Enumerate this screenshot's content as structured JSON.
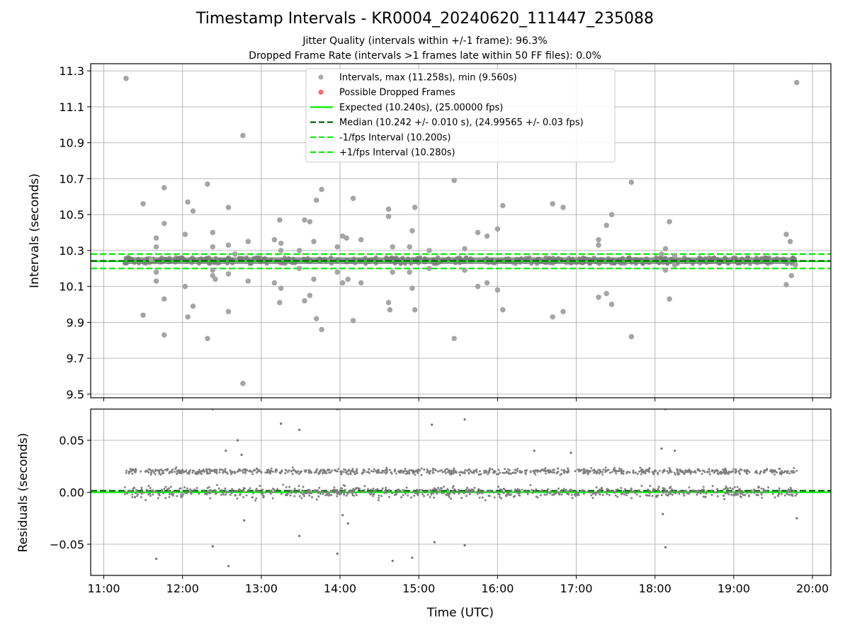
{
  "title": "Timestamp Intervals - KR0004_20240620_111447_235088",
  "subtitle_1": "Jitter Quality (intervals within +/-1 frame): 96.3%",
  "subtitle_2": "Dropped Frame Rate (intervals >1 frames late within 50 FF files): 0.0%",
  "colors": {
    "points": "#808080",
    "dropped": "#ff0000",
    "expected": "#00ee00",
    "median": "#006400",
    "fps_band": "#00ee00",
    "grid": "#b0b0b0"
  },
  "chart_data": [
    {
      "type": "scatter",
      "panel": "intervals",
      "ylabel": "Intervals (seconds)",
      "ylim": [
        9.48,
        11.34
      ],
      "yticks": [
        "9.5",
        "9.7",
        "9.9",
        "10.1",
        "10.3",
        "10.5",
        "10.7",
        "10.9",
        "11.1",
        "11.3"
      ],
      "xlim": [
        "10:50",
        "20:14"
      ],
      "grid": true,
      "legend_position": "upper center",
      "legend": [
        {
          "label": "Intervals, max (11.258s), min (9.560s)",
          "kind": "dot",
          "color": "#a0a0a0"
        },
        {
          "label": "Possible Dropped Frames",
          "kind": "dot",
          "color": "#ff5050"
        },
        {
          "label": "Expected (10.240s), (25.00000 fps)",
          "kind": "solid",
          "color": "#00ee00"
        },
        {
          "label": "Median (10.242 +/- 0.010 s), (24.99565 +/- 0.03 fps)",
          "kind": "dashed",
          "color": "#006400"
        },
        {
          "label": "-1/fps Interval (10.200s)",
          "kind": "dashed",
          "color": "#00ee00"
        },
        {
          "label": "+1/fps Interval (10.280s)",
          "kind": "dashed",
          "color": "#00ee00"
        }
      ],
      "reference_lines": {
        "expected": 10.24,
        "median": 10.242,
        "minus_1fps": 10.2,
        "plus_1fps": 10.28
      },
      "band_range": {
        "x_start": "11:16",
        "x_end": "19:48",
        "y_low": 10.225,
        "y_high": 10.262
      },
      "outliers": [
        [
          "11:17",
          11.258
        ],
        [
          "11:30",
          10.56
        ],
        [
          "11:30",
          9.94
        ],
        [
          "11:36",
          10.25
        ],
        [
          "11:40",
          10.37
        ],
        [
          "11:40",
          10.32
        ],
        [
          "11:40",
          10.18
        ],
        [
          "11:40",
          10.13
        ],
        [
          "11:46",
          10.65
        ],
        [
          "11:46",
          10.45
        ],
        [
          "11:46",
          10.03
        ],
        [
          "11:46",
          9.83
        ],
        [
          "12:02",
          10.39
        ],
        [
          "12:02",
          10.1
        ],
        [
          "12:04",
          10.57
        ],
        [
          "12:04",
          9.93
        ],
        [
          "12:08",
          10.52
        ],
        [
          "12:08",
          9.99
        ],
        [
          "12:19",
          10.67
        ],
        [
          "12:19",
          9.81
        ],
        [
          "12:23",
          10.4
        ],
        [
          "12:23",
          10.32
        ],
        [
          "12:23",
          10.19
        ],
        [
          "12:23",
          10.16
        ],
        [
          "12:25",
          10.14
        ],
        [
          "12:35",
          10.54
        ],
        [
          "12:35",
          10.33
        ],
        [
          "12:35",
          10.17
        ],
        [
          "12:35",
          9.96
        ],
        [
          "12:40",
          10.28
        ],
        [
          "12:46",
          10.94
        ],
        [
          "12:46",
          9.56
        ],
        [
          "12:50",
          10.35
        ],
        [
          "12:50",
          10.13
        ],
        [
          "13:10",
          10.36
        ],
        [
          "13:10",
          10.12
        ],
        [
          "13:14",
          10.47
        ],
        [
          "13:15",
          10.34
        ],
        [
          "13:15",
          10.3
        ],
        [
          "13:15",
          10.09
        ],
        [
          "13:14",
          10.01
        ],
        [
          "13:29",
          10.3
        ],
        [
          "13:29",
          10.2
        ],
        [
          "13:33",
          10.47
        ],
        [
          "13:33",
          10.02
        ],
        [
          "13:37",
          10.46
        ],
        [
          "13:37",
          10.05
        ],
        [
          "13:40",
          10.35
        ],
        [
          "13:40",
          10.14
        ],
        [
          "13:42",
          10.58
        ],
        [
          "13:42",
          9.92
        ],
        [
          "13:46",
          10.64
        ],
        [
          "13:46",
          9.86
        ],
        [
          "13:58",
          10.32
        ],
        [
          "13:58",
          10.18
        ],
        [
          "14:02",
          10.38
        ],
        [
          "14:02",
          10.12
        ],
        [
          "14:05",
          10.37
        ],
        [
          "14:06",
          10.14
        ],
        [
          "14:10",
          10.59
        ],
        [
          "14:10",
          9.91
        ],
        [
          "14:16",
          10.36
        ],
        [
          "14:16",
          10.12
        ],
        [
          "14:37",
          10.53
        ],
        [
          "14:37",
          10.49
        ],
        [
          "14:37",
          10.01
        ],
        [
          "14:38",
          9.97
        ],
        [
          "14:40",
          10.32
        ],
        [
          "14:40",
          10.18
        ],
        [
          "14:53",
          10.32
        ],
        [
          "14:53",
          10.18
        ],
        [
          "14:55",
          10.41
        ],
        [
          "14:55",
          10.09
        ],
        [
          "14:57",
          10.54
        ],
        [
          "14:57",
          9.97
        ],
        [
          "15:08",
          10.3
        ],
        [
          "15:08",
          10.2
        ],
        [
          "15:27",
          10.69
        ],
        [
          "15:27",
          9.81
        ],
        [
          "15:35",
          10.31
        ],
        [
          "15:35",
          10.19
        ],
        [
          "15:45",
          10.4
        ],
        [
          "15:45",
          10.1
        ],
        [
          "15:52",
          10.38
        ],
        [
          "15:52",
          10.12
        ],
        [
          "16:00",
          10.42
        ],
        [
          "16:00",
          10.08
        ],
        [
          "16:04",
          10.55
        ],
        [
          "16:04",
          9.97
        ],
        [
          "16:42",
          10.56
        ],
        [
          "16:42",
          9.93
        ],
        [
          "16:50",
          10.54
        ],
        [
          "16:50",
          9.96
        ],
        [
          "17:17",
          10.36
        ],
        [
          "17:17",
          10.33
        ],
        [
          "17:17",
          10.04
        ],
        [
          "17:23",
          10.44
        ],
        [
          "17:23",
          10.06
        ],
        [
          "17:27",
          10.5
        ],
        [
          "17:27",
          10.0
        ],
        [
          "17:42",
          10.68
        ],
        [
          "17:42",
          9.82
        ],
        [
          "18:05",
          10.28
        ],
        [
          "18:08",
          10.31
        ],
        [
          "18:08",
          10.19
        ],
        [
          "18:11",
          10.46
        ],
        [
          "18:11",
          10.03
        ],
        [
          "18:15",
          10.27
        ],
        [
          "18:15",
          10.22
        ],
        [
          "19:40",
          10.39
        ],
        [
          "19:40",
          10.11
        ],
        [
          "19:43",
          10.35
        ],
        [
          "19:44",
          10.16
        ],
        [
          "19:48",
          11.235
        ],
        [
          "19:47",
          10.22
        ]
      ]
    },
    {
      "type": "scatter",
      "panel": "residuals",
      "xlabel": "Time (UTC)",
      "ylabel": "Residuals (seconds)",
      "ylim": [
        -0.08,
        0.08
      ],
      "yticks": [
        "−0.05",
        "0.00",
        "0.05"
      ],
      "ytick_values": [
        -0.05,
        0.0,
        0.05
      ],
      "xticks": [
        "11:00",
        "12:00",
        "13:00",
        "14:00",
        "15:00",
        "16:00",
        "17:00",
        "18:00",
        "19:00",
        "20:00"
      ],
      "xlim": [
        "10:50",
        "20:14"
      ],
      "grid": true,
      "reference_lines": {
        "expected": 0.0,
        "median": 0.0015
      },
      "upper_cluster_center": 0.02,
      "lower_cluster_center": 0.0,
      "outliers": [
        [
          "11:40",
          -0.064
        ],
        [
          "12:23",
          0.08
        ],
        [
          "12:23",
          -0.052
        ],
        [
          "12:33",
          0.04
        ],
        [
          "12:35",
          -0.071
        ],
        [
          "12:42",
          0.05
        ],
        [
          "12:45",
          0.036
        ],
        [
          "12:47",
          -0.027
        ],
        [
          "13:15",
          0.066
        ],
        [
          "13:29",
          0.06
        ],
        [
          "13:29",
          -0.042
        ],
        [
          "13:58",
          0.08
        ],
        [
          "13:58",
          -0.059
        ],
        [
          "14:02",
          -0.022
        ],
        [
          "14:06",
          -0.03
        ],
        [
          "14:40",
          -0.066
        ],
        [
          "14:55",
          -0.063
        ],
        [
          "15:10",
          0.065
        ],
        [
          "15:12",
          -0.048
        ],
        [
          "15:35",
          0.07
        ],
        [
          "15:35",
          -0.051
        ],
        [
          "16:28",
          0.04
        ],
        [
          "16:56",
          0.038
        ],
        [
          "18:08",
          0.08
        ],
        [
          "18:08",
          -0.053
        ],
        [
          "18:05",
          0.042
        ],
        [
          "18:15",
          0.04
        ],
        [
          "18:06",
          -0.021
        ],
        [
          "19:48",
          -0.025
        ]
      ]
    }
  ]
}
